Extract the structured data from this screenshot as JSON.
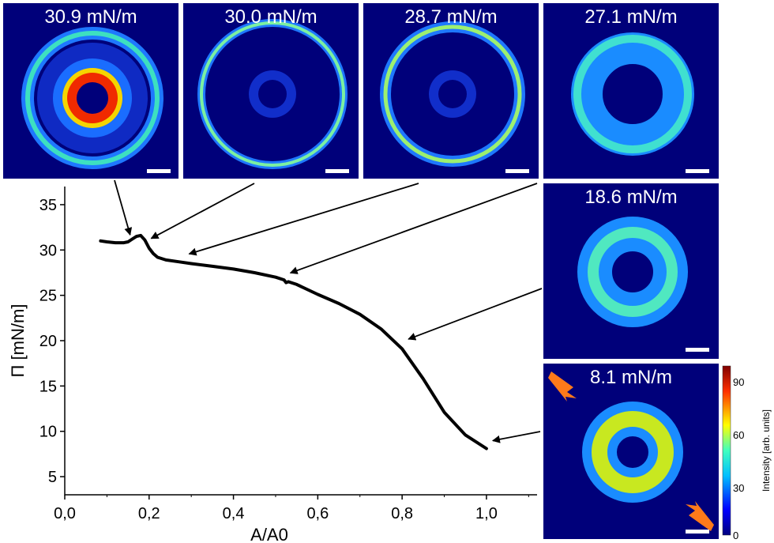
{
  "panels": [
    {
      "label": "30.9 mN/m",
      "pressure": 30.9
    },
    {
      "label": "30.0 mN/m",
      "pressure": 30.0
    },
    {
      "label": "28.7 mN/m",
      "pressure": 28.7
    },
    {
      "label": "27.1 mN/m",
      "pressure": 27.1
    },
    {
      "label": "18.6 mN/m",
      "pressure": 18.6
    },
    {
      "label": "8.1 mN/m",
      "pressure": 8.1
    }
  ],
  "colorbar": {
    "label": "Intensity [arb. units]",
    "ticks": [
      "0",
      "30",
      "60",
      "90"
    ],
    "range": [
      0,
      95
    ]
  },
  "chart_data": {
    "type": "line",
    "xlabel": "A/A0",
    "ylabel": "Π [mN/m]",
    "xlim": [
      0,
      1.12
    ],
    "ylim": [
      3,
      37
    ],
    "xticks": [
      "0,0",
      "0,2",
      "0,4",
      "0,6",
      "0,8",
      "1,0"
    ],
    "yticks": [
      "5",
      "10",
      "15",
      "20",
      "25",
      "30",
      "35"
    ],
    "series": [
      {
        "x": [
          0.085,
          0.1,
          0.12,
          0.14,
          0.15,
          0.16,
          0.17,
          0.18,
          0.19,
          0.2,
          0.21,
          0.22,
          0.24,
          0.27,
          0.3,
          0.35,
          0.4,
          0.45,
          0.5,
          0.52,
          0.525,
          0.53,
          0.55,
          0.6,
          0.65,
          0.7,
          0.75,
          0.8,
          0.85,
          0.9,
          0.95,
          1.0
        ],
        "y": [
          31.0,
          30.9,
          30.8,
          30.8,
          30.9,
          31.2,
          31.5,
          31.6,
          31.1,
          30.2,
          29.6,
          29.2,
          28.9,
          28.7,
          28.5,
          28.2,
          27.9,
          27.5,
          27.0,
          26.7,
          26.4,
          26.5,
          26.2,
          25.1,
          24.1,
          22.9,
          21.3,
          19.1,
          15.8,
          12.1,
          9.6,
          8.1
        ]
      }
    ],
    "annotations": [
      {
        "panel": "30.9 mN/m",
        "points_to": [
          0.14,
          30.8
        ]
      },
      {
        "panel": "30.0 mN/m",
        "points_to": [
          0.19,
          30.4
        ]
      },
      {
        "panel": "28.7 mN/m",
        "points_to": [
          0.28,
          28.7
        ]
      },
      {
        "panel": "27.1 mN/m",
        "points_to": [
          0.52,
          26.6
        ]
      },
      {
        "panel": "18.6 mN/m",
        "points_to": [
          0.8,
          19.3
        ]
      },
      {
        "panel": "8.1 mN/m",
        "points_to": [
          1.0,
          8.1
        ]
      }
    ]
  }
}
